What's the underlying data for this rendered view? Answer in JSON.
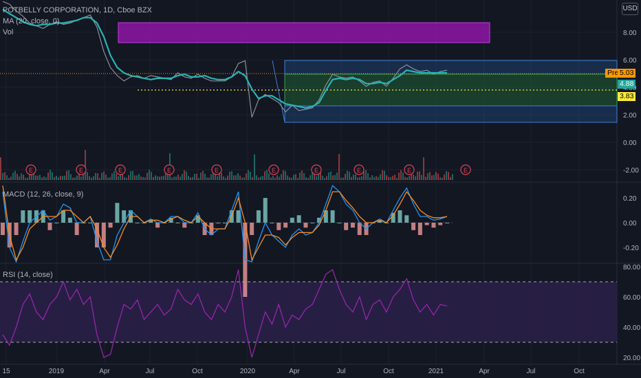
{
  "legend": {
    "symbol": "POTBELLY CORPORATION, 1D, Cboe BZX",
    "ma": "MA (20, close, 0)",
    "vol": "Vol",
    "macd": "MACD (12, 26, close, 9)",
    "rsi": "RSI (14, close)"
  },
  "currency_button": "USD",
  "price_tags": {
    "pre_label": "Pre",
    "pre_value": "5.03",
    "ma_value": "4.88",
    "level_value": "3.83"
  },
  "colors": {
    "background": "#131722",
    "price": "#8c8f99",
    "ma": "#26b5b5",
    "purple_zone": "#8e15a6",
    "macd_line": "#2196f3",
    "signal_line": "#ff8c1a",
    "rsi_line": "#9c27b0",
    "rsi_band": "#2a1f48",
    "pre_tag": "#ff9800",
    "ma_tag": "#26a69a",
    "level_tag": "#ffeb3b",
    "hist_up": "#80cbc4",
    "hist_down": "#ef9a9a",
    "earnings": "#e0435a"
  },
  "chart_data": [
    {
      "type": "line",
      "panel": "price",
      "x_ticks": [
        "15",
        "2019",
        "Apr",
        "Jul",
        "Oct",
        "2020",
        "Apr",
        "Jul",
        "Oct",
        "2021",
        "Apr",
        "Jul",
        "Oct"
      ],
      "y_ticks": [
        "8.00",
        "6.00",
        "4.00",
        "2.00",
        "0.00",
        "-2.00"
      ],
      "ylim": [
        -2.7,
        9.8
      ],
      "grid": true,
      "series": [
        {
          "name": "",
          "points": [
            [
              0,
              10.2
            ],
            [
              1,
              10.0
            ],
            [
              2,
              9.5
            ],
            [
              3,
              9.1
            ],
            [
              4,
              8.6
            ],
            [
              5,
              8.4
            ],
            [
              6,
              8.2
            ],
            [
              7,
              8.5
            ],
            [
              8,
              8.7
            ],
            [
              9,
              8.5
            ],
            [
              10,
              8.6
            ],
            [
              11,
              8.8
            ],
            [
              12,
              9.0
            ],
            [
              13,
              9.2
            ],
            [
              14,
              8.3
            ],
            [
              15,
              6.5
            ],
            [
              16,
              5.3
            ],
            [
              17,
              4.7
            ],
            [
              18,
              4.3
            ],
            [
              19,
              4.6
            ],
            [
              20,
              4.7
            ],
            [
              21,
              4.5
            ],
            [
              22,
              4.7
            ],
            [
              23,
              4.6
            ],
            [
              24,
              4.5
            ],
            [
              25,
              4.4
            ],
            [
              26,
              4.9
            ],
            [
              27,
              4.6
            ],
            [
              28,
              4.5
            ],
            [
              29,
              4.8
            ],
            [
              30,
              4.5
            ],
            [
              31,
              4.3
            ],
            [
              32,
              4.3
            ],
            [
              33,
              4.3
            ],
            [
              34,
              4.6
            ],
            [
              35,
              5.6
            ],
            [
              36,
              5.8
            ],
            [
              37,
              1.6
            ],
            [
              38,
              2.9
            ],
            [
              39,
              3.3
            ],
            [
              40,
              3.0
            ],
            [
              41,
              2.7
            ],
            [
              42,
              2.0
            ],
            [
              43,
              2.5
            ],
            [
              44,
              2.1
            ],
            [
              45,
              2.2
            ],
            [
              46,
              2.3
            ],
            [
              47,
              2.9
            ],
            [
              48,
              4.0
            ],
            [
              49,
              4.8
            ],
            [
              50,
              4.6
            ],
            [
              51,
              4.5
            ],
            [
              52,
              4.6
            ],
            [
              53,
              4.3
            ],
            [
              54,
              3.9
            ],
            [
              55,
              4.2
            ],
            [
              56,
              4.3
            ],
            [
              57,
              3.9
            ],
            [
              58,
              4.5
            ],
            [
              59,
              5.2
            ],
            [
              60,
              5.5
            ],
            [
              61,
              5.2
            ],
            [
              62,
              5.0
            ],
            [
              63,
              5.1
            ],
            [
              64,
              4.8
            ],
            [
              65,
              5.0
            ],
            [
              66,
              5.1
            ]
          ]
        },
        {
          "name": "",
          "points": [
            [
              0,
              9.6
            ],
            [
              1,
              9.3
            ],
            [
              2,
              9.0
            ],
            [
              3,
              8.7
            ],
            [
              4,
              8.5
            ],
            [
              5,
              8.4
            ],
            [
              6,
              8.5
            ],
            [
              7,
              8.5
            ],
            [
              8,
              8.6
            ],
            [
              9,
              8.6
            ],
            [
              10,
              8.7
            ],
            [
              11,
              8.8
            ],
            [
              12,
              9.0
            ],
            [
              13,
              9.0
            ],
            [
              14,
              8.6
            ],
            [
              15,
              7.6
            ],
            [
              16,
              6.2
            ],
            [
              17,
              5.3
            ],
            [
              18,
              4.9
            ],
            [
              19,
              4.7
            ],
            [
              20,
              4.6
            ],
            [
              21,
              4.5
            ],
            [
              22,
              4.4
            ],
            [
              23,
              4.5
            ],
            [
              24,
              4.5
            ],
            [
              25,
              4.5
            ],
            [
              26,
              4.7
            ],
            [
              27,
              4.8
            ],
            [
              28,
              4.6
            ],
            [
              29,
              4.6
            ],
            [
              30,
              4.7
            ],
            [
              31,
              4.5
            ],
            [
              32,
              4.4
            ],
            [
              33,
              4.4
            ],
            [
              34,
              4.6
            ],
            [
              35,
              5.0
            ],
            [
              36,
              4.7
            ],
            [
              37,
              3.7
            ],
            [
              38,
              3.0
            ],
            [
              39,
              3.2
            ],
            [
              40,
              3.2
            ],
            [
              41,
              2.9
            ],
            [
              42,
              2.6
            ],
            [
              43,
              2.5
            ],
            [
              44,
              2.4
            ],
            [
              45,
              2.3
            ],
            [
              46,
              2.4
            ],
            [
              47,
              2.7
            ],
            [
              48,
              3.6
            ],
            [
              49,
              4.4
            ],
            [
              50,
              4.5
            ],
            [
              51,
              4.4
            ],
            [
              52,
              4.5
            ],
            [
              53,
              4.4
            ],
            [
              54,
              4.1
            ],
            [
              55,
              4.1
            ],
            [
              56,
              4.2
            ],
            [
              57,
              4.1
            ],
            [
              58,
              4.4
            ],
            [
              59,
              4.7
            ],
            [
              60,
              5.1
            ],
            [
              61,
              5.0
            ],
            [
              62,
              4.9
            ],
            [
              63,
              4.9
            ],
            [
              64,
              4.9
            ],
            [
              65,
              4.9
            ],
            [
              66,
              4.9
            ]
          ]
        }
      ],
      "annotations": [
        "E",
        "E",
        "E",
        "E",
        "E",
        "E",
        "E",
        "E",
        "E",
        "E",
        "E"
      ]
    },
    {
      "type": "bar",
      "panel": "macd",
      "y_ticks": [
        "0.20",
        "0.00",
        "-0.20"
      ],
      "ylim": [
        -0.32,
        0.32
      ],
      "series": [
        {
          "name": "",
          "values": [
            0.25,
            -0.2,
            -0.35,
            -0.15,
            0.0,
            0.05,
            0.1,
            0.02,
            0.05,
            0.15,
            0.12,
            0.0,
            0.0,
            0.05,
            -0.15,
            -0.3,
            -0.3,
            -0.1,
            0.0,
            0.1,
            0.05,
            0.0,
            0.03,
            0.0,
            0.0,
            0.05,
            0.05,
            0.0,
            0.0,
            0.08,
            -0.05,
            -0.1,
            -0.05,
            -0.05,
            0.1,
            0.25,
            -0.3,
            -0.35,
            -0.15,
            0.0,
            -0.1,
            -0.15,
            -0.2,
            -0.1,
            -0.05,
            -0.1,
            -0.08,
            0.0,
            0.15,
            0.3,
            0.25,
            0.15,
            0.1,
            0.0,
            -0.05,
            0.0,
            0.03,
            0.0,
            0.1,
            0.2,
            0.28,
            0.15,
            0.05,
            0.05,
            0.02,
            0.03,
            0.05
          ]
        },
        {
          "name": "",
          "values": [
            0.3,
            -0.1,
            -0.3,
            -0.2,
            -0.05,
            0.0,
            0.05,
            0.05,
            0.05,
            0.1,
            0.1,
            0.05,
            0.0,
            0.05,
            -0.05,
            -0.2,
            -0.28,
            -0.18,
            -0.05,
            0.05,
            0.05,
            0.0,
            0.02,
            0.02,
            0.0,
            0.03,
            0.05,
            0.02,
            0.0,
            0.05,
            0.0,
            -0.05,
            -0.05,
            -0.05,
            0.05,
            0.2,
            0.0,
            -0.3,
            -0.2,
            -0.1,
            -0.1,
            -0.12,
            -0.18,
            -0.12,
            -0.08,
            -0.08,
            -0.08,
            -0.02,
            0.1,
            0.25,
            0.25,
            0.18,
            0.12,
            0.05,
            0.0,
            0.0,
            0.02,
            0.0,
            0.06,
            0.15,
            0.25,
            0.18,
            0.1,
            0.06,
            0.04,
            0.04,
            0.05
          ]
        }
      ]
    },
    {
      "type": "line",
      "panel": "rsi",
      "y_ticks": [
        "80.00",
        "60.00",
        "40.00",
        "20.00"
      ],
      "ylim": [
        18,
        82
      ],
      "bands": [
        70,
        30
      ],
      "series": [
        {
          "name": "",
          "values": [
            35,
            28,
            40,
            55,
            62,
            50,
            45,
            55,
            60,
            70,
            58,
            65,
            55,
            60,
            35,
            20,
            22,
            40,
            55,
            52,
            58,
            45,
            50,
            55,
            48,
            52,
            65,
            58,
            55,
            62,
            50,
            45,
            55,
            50,
            60,
            78,
            40,
            20,
            35,
            50,
            42,
            55,
            40,
            48,
            45,
            52,
            55,
            65,
            75,
            78,
            65,
            55,
            50,
            60,
            45,
            55,
            58,
            50,
            60,
            65,
            72,
            58,
            50,
            55,
            48,
            55,
            54
          ]
        }
      ]
    }
  ]
}
